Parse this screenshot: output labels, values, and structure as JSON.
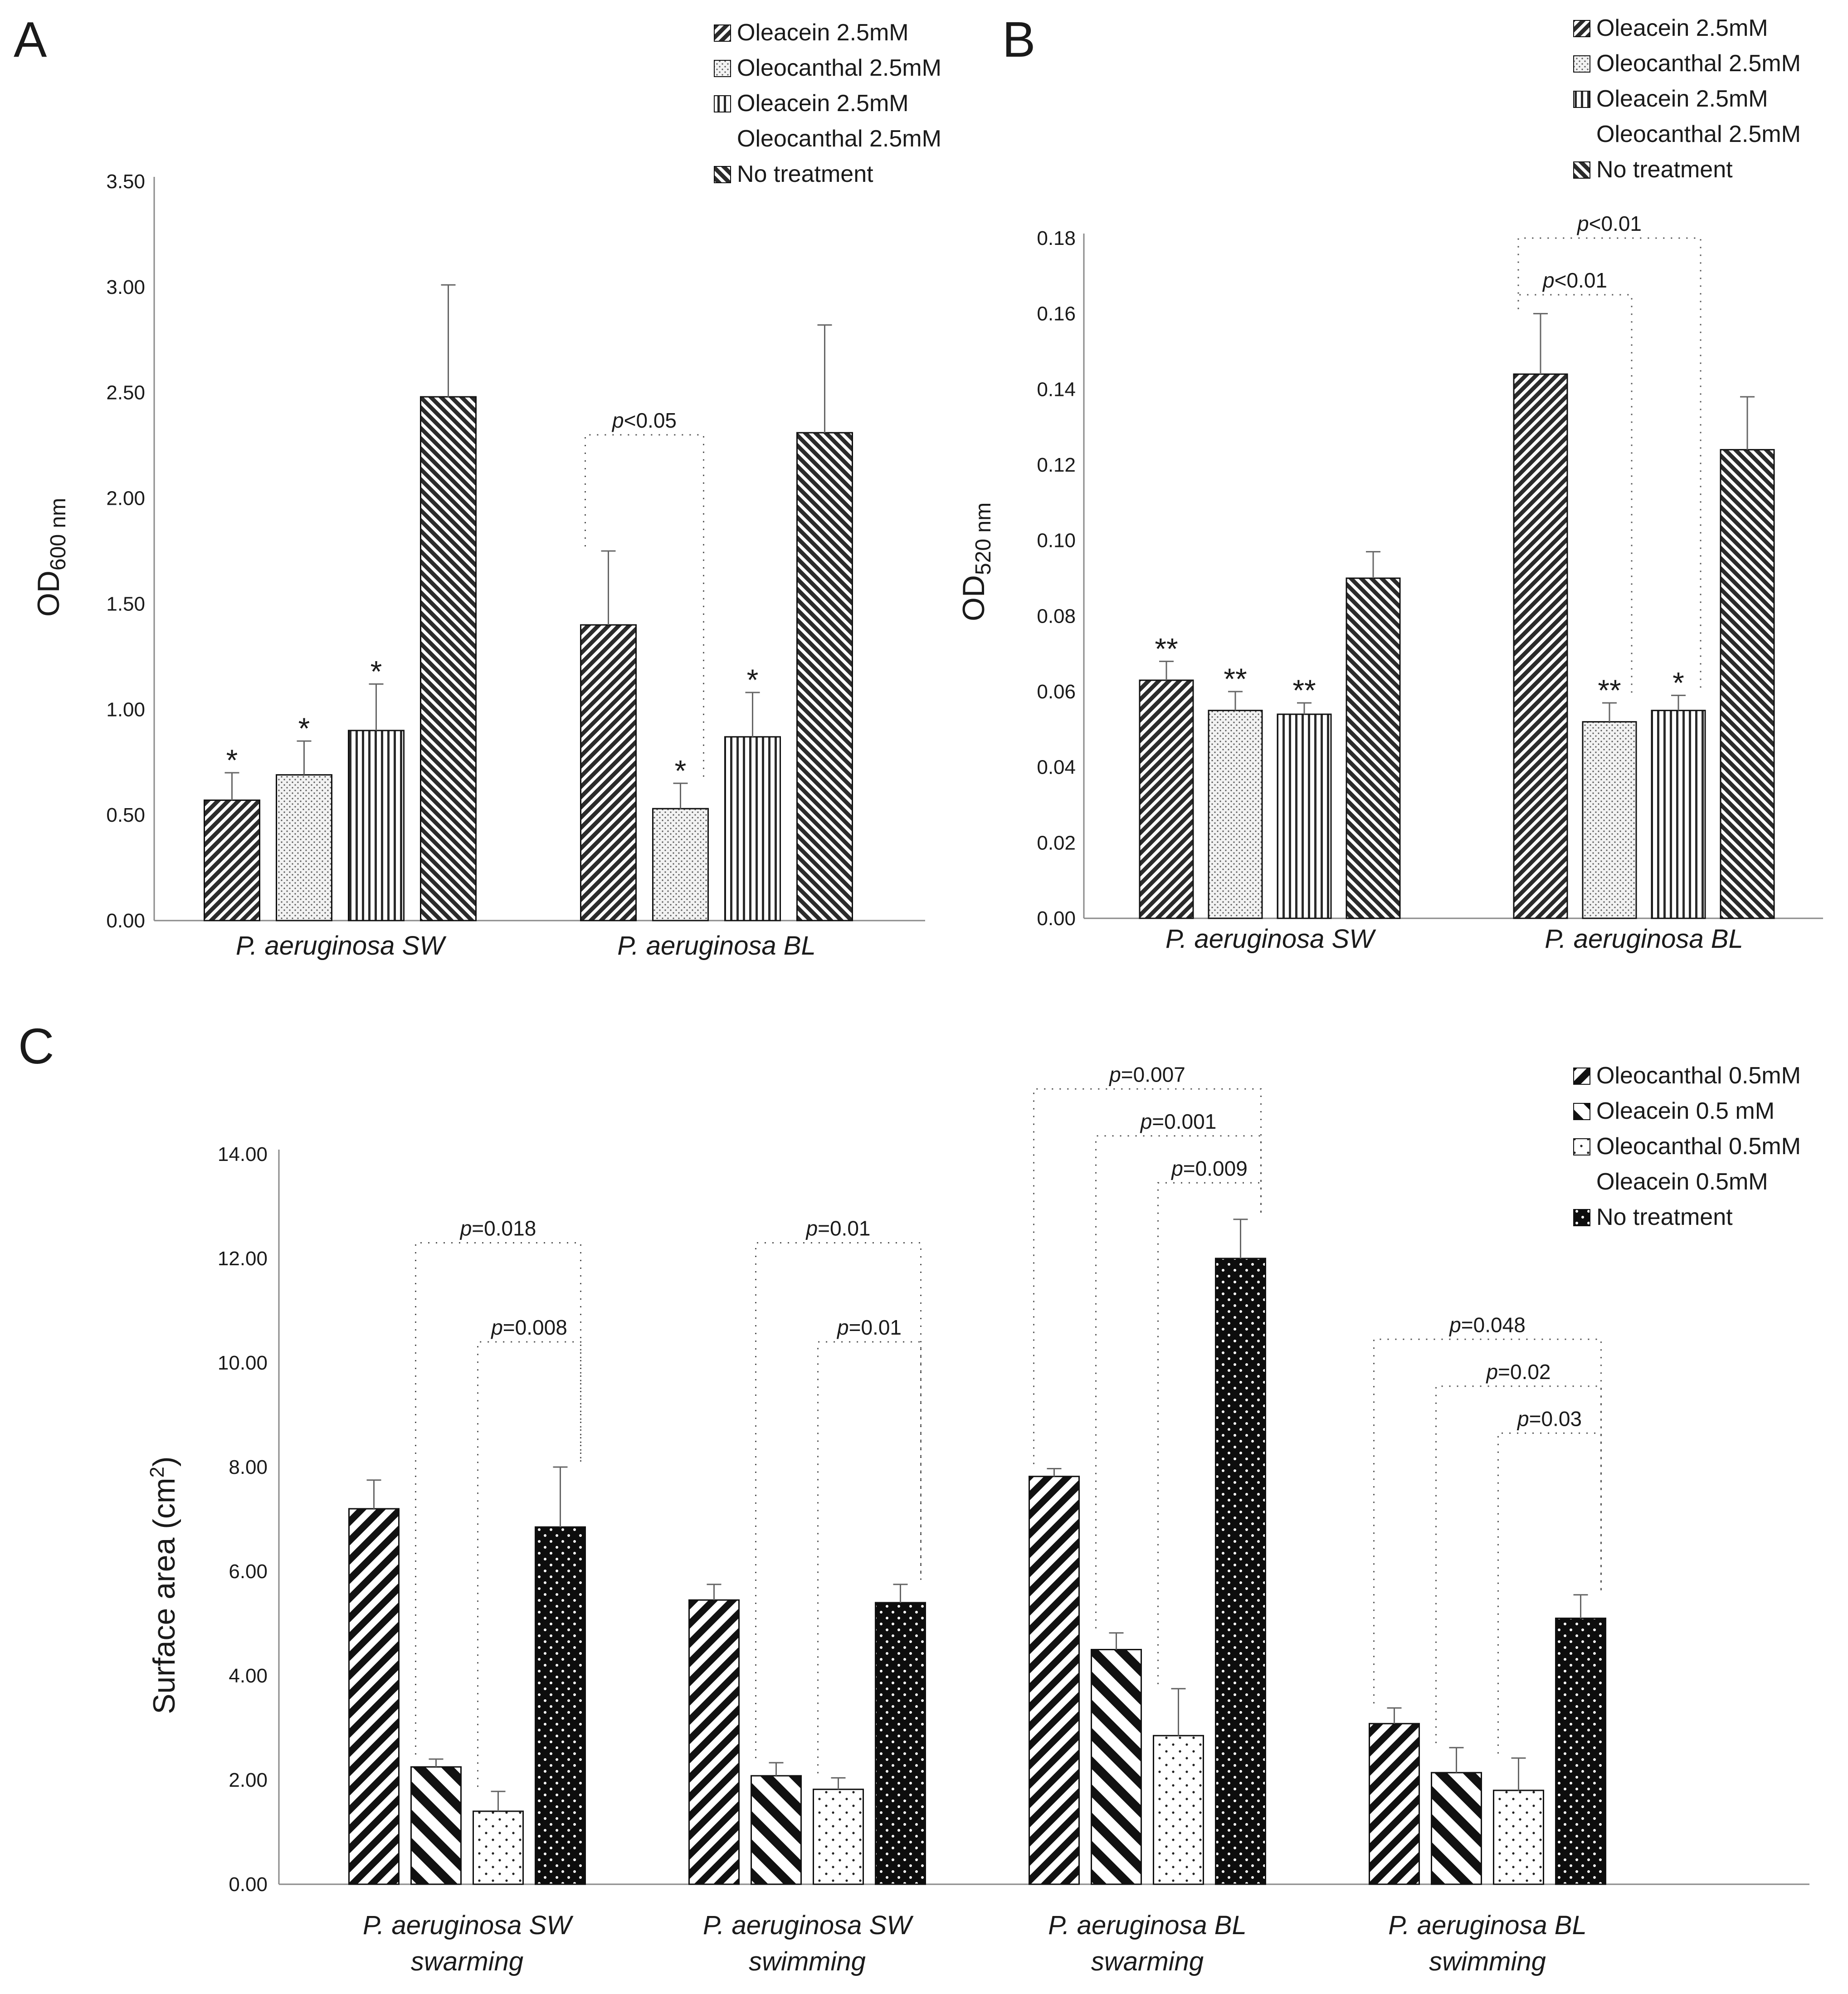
{
  "panels": [
    {
      "letter": "A",
      "type": "bar",
      "ylabel_main": "OD",
      "ylabel_sub": "600 nm",
      "ylim": [
        0,
        3.5
      ],
      "yticks": [
        "0.00",
        "0.50",
        "1.00",
        "1.50",
        "2.00",
        "2.50",
        "3.00",
        "3.50"
      ],
      "categories": [
        "P. aeruginosa SW",
        "P. aeruginosa BL"
      ],
      "series": [
        {
          "name": "Oleacein 2.5mM",
          "legend": [
            "Oleacein 2.5mM"
          ],
          "pattern": "diag-dense",
          "values": [
            0.57,
            1.4
          ],
          "errors": [
            0.13,
            0.35
          ],
          "stars": [
            "*",
            ""
          ]
        },
        {
          "name": "Oleocanthal 2.5mM",
          "legend": [
            "Oleocanthal 2.5mM"
          ],
          "pattern": "dots-fine",
          "values": [
            0.69,
            0.53
          ],
          "errors": [
            0.16,
            0.12
          ],
          "stars": [
            "*",
            "*"
          ]
        },
        {
          "name": "Oleacein 2.5mM Oleocanthal 2.5mM",
          "legend": [
            "Oleacein 2.5mM",
            "Oleocanthal 2.5mM"
          ],
          "pattern": "vert-lines",
          "values": [
            0.9,
            0.87
          ],
          "errors": [
            0.22,
            0.21
          ],
          "stars": [
            "*",
            "*"
          ]
        },
        {
          "name": "No treatment",
          "legend": [
            "No treatment"
          ],
          "pattern": "diag-back",
          "values": [
            2.48,
            2.31
          ],
          "errors": [
            0.53,
            0.51
          ],
          "stars": [
            "",
            ""
          ]
        }
      ],
      "brackets": [
        {
          "label_p": "p",
          "label_rest": "<0.05",
          "group": 1,
          "from": 0,
          "to": 1,
          "level": 2.3
        }
      ]
    },
    {
      "letter": "B",
      "type": "bar",
      "ylabel_main": "OD",
      "ylabel_sub": "520 nm",
      "ylim": [
        0,
        0.18
      ],
      "yticks": [
        "0.00",
        "0.02",
        "0.04",
        "0.06",
        "0.08",
        "0.10",
        "0.12",
        "0.14",
        "0.16",
        "0.18"
      ],
      "categories": [
        "P. aeruginosa SW",
        "P. aeruginosa BL"
      ],
      "series": [
        {
          "name": "Oleacein 2.5mM",
          "legend": [
            "Oleacein 2.5mM"
          ],
          "pattern": "diag-dense",
          "values": [
            0.063,
            0.144
          ],
          "errors": [
            0.005,
            0.016
          ],
          "stars": [
            "**",
            ""
          ]
        },
        {
          "name": "Oleocanthal 2.5mM",
          "legend": [
            "Oleocanthal 2.5mM"
          ],
          "pattern": "dots-fine",
          "values": [
            0.055,
            0.052
          ],
          "errors": [
            0.005,
            0.005
          ],
          "stars": [
            "**",
            "**"
          ]
        },
        {
          "name": "Oleacein 2.5mM Oleocanthal 2.5mM",
          "legend": [
            "Oleacein 2.5mM",
            "Oleocanthal 2.5mM"
          ],
          "pattern": "vert-lines",
          "values": [
            0.054,
            0.055
          ],
          "errors": [
            0.003,
            0.004
          ],
          "stars": [
            "**",
            "*"
          ]
        },
        {
          "name": "No treatment",
          "legend": [
            "No treatment"
          ],
          "pattern": "diag-back",
          "values": [
            0.09,
            0.124
          ],
          "errors": [
            0.007,
            0.014
          ],
          "stars": [
            "",
            ""
          ]
        }
      ],
      "brackets": [
        {
          "label_p": "p",
          "label_rest": "<0.01",
          "group": 1,
          "from": 0,
          "to": 2,
          "level": 0.18
        },
        {
          "label_p": "p",
          "label_rest": "<0.01",
          "group": 1,
          "from": 0,
          "to": 1,
          "level": 0.165
        }
      ]
    },
    {
      "letter": "C",
      "type": "bar",
      "ylabel_main": "Surface area (cm",
      "ylabel_sup": "2",
      "ylabel_end": ")",
      "ylim": [
        0,
        14
      ],
      "yticks": [
        "0.00",
        "2.00",
        "4.00",
        "6.00",
        "8.00",
        "10.00",
        "12.00",
        "14.00"
      ],
      "categories": [
        [
          "P. aeruginosa SW",
          "swarming"
        ],
        [
          "P. aeruginosa SW",
          "swimming"
        ],
        [
          "P. aeruginosa BL",
          "swarming"
        ],
        [
          "P. aeruginosa BL",
          "swimming"
        ]
      ],
      "series": [
        {
          "name": "Oleocanthal 0.5mM",
          "legend": [
            "Oleocanthal 0.5mM"
          ],
          "pattern": "wide-diag",
          "values": [
            7.2,
            5.45,
            7.82,
            3.08
          ],
          "errors": [
            0.55,
            0.3,
            0.15,
            0.3
          ]
        },
        {
          "name": "Oleacein 0.5 mM",
          "legend": [
            "Oleacein 0.5 mM"
          ],
          "pattern": "wide-back",
          "values": [
            2.25,
            2.08,
            4.5,
            2.14
          ],
          "errors": [
            0.15,
            0.25,
            0.32,
            0.48
          ]
        },
        {
          "name": "Oleocanthal 0.5mM Oleacein 0.5mM",
          "legend": [
            "Oleocanthal 0.5mM",
            "Oleacein 0.5mM"
          ],
          "pattern": "sparse-dots",
          "values": [
            1.4,
            1.82,
            2.85,
            1.8
          ],
          "errors": [
            0.38,
            0.22,
            0.9,
            0.62
          ]
        },
        {
          "name": "No treatment",
          "legend": [
            "No treatment"
          ],
          "pattern": "black-dots",
          "values": [
            6.85,
            5.4,
            12.0,
            5.1
          ],
          "errors": [
            1.15,
            0.35,
            0.75,
            0.45
          ]
        }
      ],
      "brackets": [
        {
          "label_p": "p",
          "label_rest": "=0.018",
          "group": 0,
          "from": 1,
          "to": 3,
          "level": 12.3
        },
        {
          "label_p": "p",
          "label_rest": "=0.008",
          "group": 0,
          "from": 2,
          "to": 3,
          "level": 10.4
        },
        {
          "label_p": "p",
          "label_rest": "=0.01",
          "group": 1,
          "from": 1,
          "to": 3,
          "level": 12.3
        },
        {
          "label_p": "p",
          "label_rest": "=0.01",
          "group": 1,
          "from": 2,
          "to": 3,
          "level": 10.4
        },
        {
          "label_p": "p",
          "label_rest": "=0.007",
          "group": 2,
          "from": 0,
          "to": 3,
          "level": 15.25
        },
        {
          "label_p": "p",
          "label_rest": "=0.001",
          "group": 2,
          "from": 1,
          "to": 3,
          "level": 14.35
        },
        {
          "label_p": "p",
          "label_rest": "=0.009",
          "group": 2,
          "from": 2,
          "to": 3,
          "level": 13.45
        },
        {
          "label_p": "p",
          "label_rest": "=0.048",
          "group": 3,
          "from": 0,
          "to": 3,
          "level": 10.45
        },
        {
          "label_p": "p",
          "label_rest": "=0.02",
          "group": 3,
          "from": 1,
          "to": 3,
          "level": 9.55
        },
        {
          "label_p": "p",
          "label_rest": "=0.03",
          "group": 3,
          "from": 2,
          "to": 3,
          "level": 8.65
        }
      ]
    }
  ],
  "chart_data": [
    {
      "type": "bar",
      "title": "A",
      "ylabel": "OD 600 nm",
      "ylim": [
        0,
        3.5
      ],
      "categories": [
        "P. aeruginosa SW",
        "P. aeruginosa BL"
      ],
      "series": [
        {
          "name": "Oleacein 2.5mM",
          "values": [
            0.57,
            1.4
          ]
        },
        {
          "name": "Oleocanthal 2.5mM",
          "values": [
            0.69,
            0.53
          ]
        },
        {
          "name": "Oleacein 2.5mM Oleocanthal 2.5mM",
          "values": [
            0.9,
            0.87
          ]
        },
        {
          "name": "No treatment",
          "values": [
            2.48,
            2.31
          ]
        }
      ],
      "annotations": [
        "p<0.05"
      ]
    },
    {
      "type": "bar",
      "title": "B",
      "ylabel": "OD 520 nm",
      "ylim": [
        0,
        0.18
      ],
      "categories": [
        "P. aeruginosa SW",
        "P. aeruginosa BL"
      ],
      "series": [
        {
          "name": "Oleacein 2.5mM",
          "values": [
            0.063,
            0.144
          ]
        },
        {
          "name": "Oleocanthal 2.5mM",
          "values": [
            0.055,
            0.052
          ]
        },
        {
          "name": "Oleacein 2.5mM Oleocanthal 2.5mM",
          "values": [
            0.054,
            0.055
          ]
        },
        {
          "name": "No treatment",
          "values": [
            0.09,
            0.124
          ]
        }
      ],
      "annotations": [
        "p<0.01",
        "p<0.01"
      ]
    },
    {
      "type": "bar",
      "title": "C",
      "ylabel": "Surface area (cm2)",
      "ylim": [
        0,
        14
      ],
      "categories": [
        "P. aeruginosa SW swarming",
        "P. aeruginosa SW swimming",
        "P. aeruginosa BL swarming",
        "P. aeruginosa BL swimming"
      ],
      "series": [
        {
          "name": "Oleocanthal 0.5mM",
          "values": [
            7.2,
            5.45,
            7.82,
            3.08
          ]
        },
        {
          "name": "Oleacein 0.5 mM",
          "values": [
            2.25,
            2.08,
            4.5,
            2.14
          ]
        },
        {
          "name": "Oleocanthal 0.5mM Oleacein 0.5mM",
          "values": [
            1.4,
            1.82,
            2.85,
            1.8
          ]
        },
        {
          "name": "No treatment",
          "values": [
            6.85,
            5.4,
            12.0,
            5.1
          ]
        }
      ],
      "annotations": [
        "p=0.018",
        "p=0.008",
        "p=0.01",
        "p=0.01",
        "p=0.007",
        "p=0.001",
        "p=0.009",
        "p=0.048",
        "p=0.02",
        "p=0.03"
      ]
    }
  ]
}
